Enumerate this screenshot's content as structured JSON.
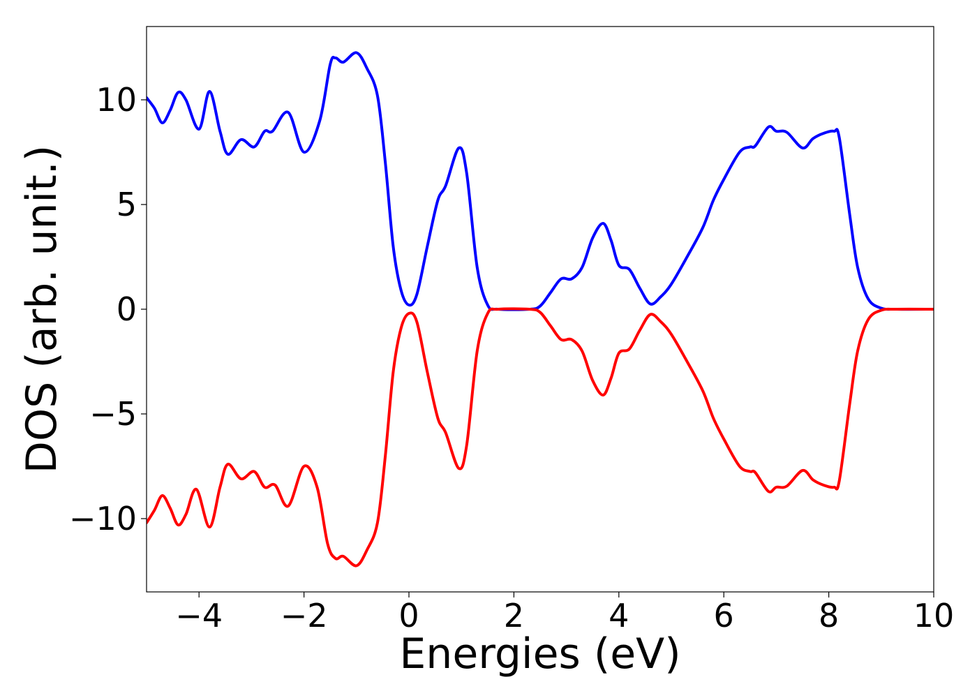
{
  "chart_data": {
    "type": "line",
    "xlabel": "Energies (eV)",
    "ylabel": "DOS (arb. unit.)",
    "xlim": [
      -5,
      10
    ],
    "ylim": [
      -13.5,
      13.5
    ],
    "xticks": [
      -4,
      -2,
      0,
      2,
      4,
      6,
      8,
      10
    ],
    "yticks": [
      -10,
      -5,
      0,
      5,
      10
    ],
    "xtick_labels": [
      "−4",
      "−2",
      "0",
      "2",
      "4",
      "6",
      "8",
      "10"
    ],
    "ytick_labels": [
      "−10",
      "−5",
      "0",
      "5",
      "10"
    ],
    "grid": false,
    "legend": "none",
    "series": [
      {
        "color": "#0000ff",
        "points": [
          [
            -5.0,
            10.1
          ],
          [
            -4.85,
            9.6
          ],
          [
            -4.7,
            8.9
          ],
          [
            -4.55,
            9.5
          ],
          [
            -4.4,
            10.35
          ],
          [
            -4.25,
            10.0
          ],
          [
            -4.0,
            8.6
          ],
          [
            -3.8,
            10.4
          ],
          [
            -3.6,
            8.5
          ],
          [
            -3.45,
            7.4
          ],
          [
            -3.2,
            8.1
          ],
          [
            -2.95,
            7.75
          ],
          [
            -2.75,
            8.5
          ],
          [
            -2.6,
            8.5
          ],
          [
            -2.3,
            9.4
          ],
          [
            -2.0,
            7.5
          ],
          [
            -1.7,
            9.0
          ],
          [
            -1.5,
            11.7
          ],
          [
            -1.4,
            12.0
          ],
          [
            -1.25,
            11.8
          ],
          [
            -1.0,
            12.25
          ],
          [
            -0.8,
            11.5
          ],
          [
            -0.6,
            10.2
          ],
          [
            -0.45,
            7.0
          ],
          [
            -0.3,
            3.0
          ],
          [
            -0.15,
            0.9
          ],
          [
            0.0,
            0.2
          ],
          [
            0.15,
            0.7
          ],
          [
            0.35,
            3.0
          ],
          [
            0.55,
            5.2
          ],
          [
            0.7,
            5.9
          ],
          [
            0.95,
            7.7
          ],
          [
            1.1,
            6.5
          ],
          [
            1.3,
            2.0
          ],
          [
            1.5,
            0.2
          ],
          [
            1.7,
            0.0
          ],
          [
            2.3,
            0.0
          ],
          [
            2.5,
            0.15
          ],
          [
            2.7,
            0.8
          ],
          [
            2.9,
            1.45
          ],
          [
            3.1,
            1.45
          ],
          [
            3.3,
            2.0
          ],
          [
            3.5,
            3.4
          ],
          [
            3.7,
            4.1
          ],
          [
            3.85,
            3.3
          ],
          [
            4.0,
            2.1
          ],
          [
            4.2,
            1.9
          ],
          [
            4.4,
            1.0
          ],
          [
            4.6,
            0.25
          ],
          [
            4.8,
            0.6
          ],
          [
            5.0,
            1.2
          ],
          [
            5.3,
            2.5
          ],
          [
            5.6,
            3.9
          ],
          [
            5.8,
            5.2
          ],
          [
            6.0,
            6.2
          ],
          [
            6.3,
            7.5
          ],
          [
            6.5,
            7.75
          ],
          [
            6.6,
            7.8
          ],
          [
            6.85,
            8.7
          ],
          [
            7.0,
            8.5
          ],
          [
            7.2,
            8.45
          ],
          [
            7.5,
            7.7
          ],
          [
            7.7,
            8.15
          ],
          [
            7.9,
            8.4
          ],
          [
            8.1,
            8.5
          ],
          [
            8.2,
            8.2
          ],
          [
            8.4,
            4.5
          ],
          [
            8.55,
            2.0
          ],
          [
            8.75,
            0.5
          ],
          [
            9.0,
            0.05
          ],
          [
            9.3,
            0.0
          ],
          [
            10.0,
            0.0
          ]
        ]
      },
      {
        "color": "#ff0000",
        "points": [
          [
            -5.0,
            -10.2
          ],
          [
            -4.85,
            -9.6
          ],
          [
            -4.7,
            -8.9
          ],
          [
            -4.55,
            -9.5
          ],
          [
            -4.4,
            -10.3
          ],
          [
            -4.25,
            -9.8
          ],
          [
            -4.05,
            -8.6
          ],
          [
            -3.8,
            -10.4
          ],
          [
            -3.6,
            -8.5
          ],
          [
            -3.45,
            -7.4
          ],
          [
            -3.2,
            -8.1
          ],
          [
            -2.95,
            -7.75
          ],
          [
            -2.75,
            -8.5
          ],
          [
            -2.55,
            -8.4
          ],
          [
            -2.3,
            -9.4
          ],
          [
            -2.0,
            -7.5
          ],
          [
            -1.75,
            -8.5
          ],
          [
            -1.55,
            -11.2
          ],
          [
            -1.4,
            -11.9
          ],
          [
            -1.25,
            -11.8
          ],
          [
            -1.0,
            -12.25
          ],
          [
            -0.8,
            -11.5
          ],
          [
            -0.6,
            -10.2
          ],
          [
            -0.45,
            -7.0
          ],
          [
            -0.3,
            -3.0
          ],
          [
            -0.15,
            -0.9
          ],
          [
            0.0,
            -0.2
          ],
          [
            0.15,
            -0.6
          ],
          [
            0.35,
            -3.0
          ],
          [
            0.55,
            -5.2
          ],
          [
            0.7,
            -5.9
          ],
          [
            0.95,
            -7.6
          ],
          [
            1.1,
            -6.5
          ],
          [
            1.3,
            -2.0
          ],
          [
            1.5,
            -0.2
          ],
          [
            1.7,
            0.0
          ],
          [
            2.3,
            0.0
          ],
          [
            2.5,
            -0.15
          ],
          [
            2.7,
            -0.8
          ],
          [
            2.9,
            -1.45
          ],
          [
            3.1,
            -1.45
          ],
          [
            3.3,
            -2.0
          ],
          [
            3.5,
            -3.4
          ],
          [
            3.7,
            -4.1
          ],
          [
            3.85,
            -3.3
          ],
          [
            4.0,
            -2.1
          ],
          [
            4.2,
            -1.9
          ],
          [
            4.4,
            -1.0
          ],
          [
            4.6,
            -0.25
          ],
          [
            4.8,
            -0.6
          ],
          [
            5.0,
            -1.2
          ],
          [
            5.3,
            -2.5
          ],
          [
            5.6,
            -3.9
          ],
          [
            5.8,
            -5.2
          ],
          [
            6.0,
            -6.2
          ],
          [
            6.3,
            -7.5
          ],
          [
            6.5,
            -7.75
          ],
          [
            6.6,
            -7.8
          ],
          [
            6.85,
            -8.7
          ],
          [
            7.0,
            -8.5
          ],
          [
            7.2,
            -8.45
          ],
          [
            7.5,
            -7.7
          ],
          [
            7.7,
            -8.15
          ],
          [
            7.9,
            -8.4
          ],
          [
            8.1,
            -8.5
          ],
          [
            8.2,
            -8.2
          ],
          [
            8.4,
            -4.5
          ],
          [
            8.55,
            -2.0
          ],
          [
            8.75,
            -0.5
          ],
          [
            9.0,
            -0.05
          ],
          [
            9.3,
            0.0
          ],
          [
            10.0,
            0.0
          ]
        ]
      }
    ]
  }
}
